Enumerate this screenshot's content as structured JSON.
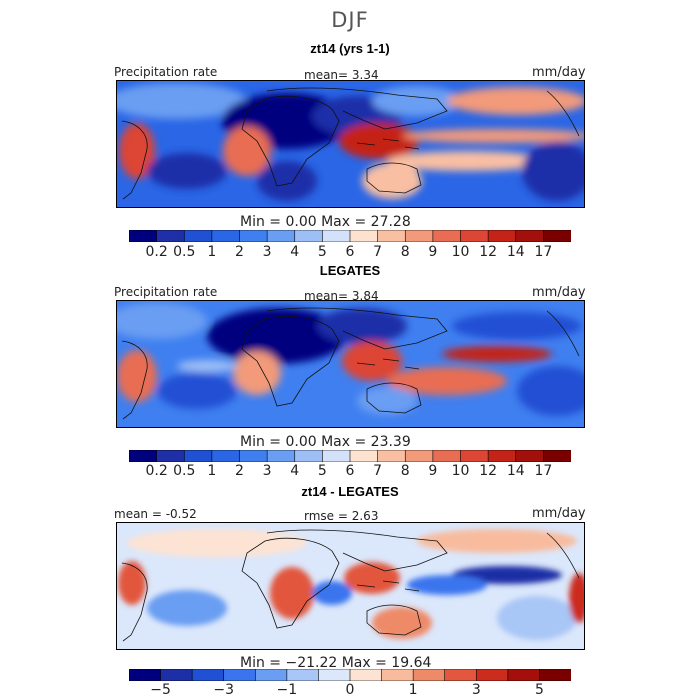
{
  "season": "DJF",
  "colors": {
    "precip_palette": [
      "#00007f",
      "#1f2fa8",
      "#2050d4",
      "#2a66e6",
      "#3f7ff0",
      "#6a9ef2",
      "#9ebff5",
      "#d3e2fa",
      "#fde2d0",
      "#f9bfa3",
      "#f29a7a",
      "#e86d52",
      "#dd4535",
      "#c52318",
      "#a30f0b",
      "#7a0000"
    ],
    "diff_palette": [
      "#00007f",
      "#1c2fa6",
      "#2050d4",
      "#3b74ee",
      "#6a9ef2",
      "#a8c6f6",
      "#dbe7fb",
      "#fde3d3",
      "#f8bb9d",
      "#ee8a68",
      "#e2573d",
      "#cc2c1c",
      "#a40f0b",
      "#7a0000"
    ]
  },
  "panels": [
    {
      "title": "zt14 (yrs 1-1)",
      "left_label": "Precipitation rate",
      "center_label": "mean=   3.34",
      "units": "mm/day",
      "minmax": "Min =    0.00  Max =   27.28",
      "colorbar_ticks": [
        "0.2",
        "0.5",
        "1",
        "2",
        "3",
        "4",
        "5",
        "6",
        "7",
        "8",
        "9",
        "10",
        "12",
        "14",
        "17"
      ]
    },
    {
      "title": "LEGATES",
      "left_label": "Precipitation rate",
      "center_label": "mean=   3.84",
      "units": "mm/day",
      "minmax": "Min =    0.00  Max =   23.39",
      "colorbar_ticks": [
        "0.2",
        "0.5",
        "1",
        "2",
        "3",
        "4",
        "5",
        "6",
        "7",
        "8",
        "9",
        "10",
        "12",
        "14",
        "17"
      ]
    },
    {
      "title": "zt14 - LEGATES",
      "left_label": "mean =   -0.52",
      "center_label": "rmse =    2.63",
      "units": "mm/day",
      "minmax": "Min = −21.22  Max =   19.64",
      "colorbar_ticks": [
        "−5",
        "−3",
        "−1",
        "0",
        "1",
        "3",
        "5"
      ]
    }
  ],
  "chart_data": [
    {
      "type": "heatmap",
      "title": "zt14 (yrs 1-1)",
      "variable": "Precipitation rate",
      "units": "mm/day",
      "mean": 3.34,
      "min": 0.0,
      "max": 27.28,
      "colorbar_levels": [
        0.2,
        0.5,
        1,
        2,
        3,
        4,
        5,
        6,
        7,
        8,
        9,
        10,
        12,
        14,
        17
      ],
      "zones": [
        {
          "lon": 20,
          "lat": -10,
          "value": 10
        },
        {
          "lon": 120,
          "lat": -5,
          "value": 12
        },
        {
          "lon": 150,
          "lat": 3,
          "value": 8
        },
        {
          "lon": -60,
          "lat": -10,
          "value": 8
        },
        {
          "lon": 20,
          "lat": 25,
          "value": 0.2
        },
        {
          "lon": 60,
          "lat": 20,
          "value": 0.5
        },
        {
          "lon": -120,
          "lat": 40,
          "value": 3
        }
      ]
    },
    {
      "type": "heatmap",
      "title": "LEGATES",
      "variable": "Precipitation rate",
      "units": "mm/day",
      "mean": 3.84,
      "min": 0.0,
      "max": 23.39,
      "colorbar_levels": [
        0.2,
        0.5,
        1,
        2,
        3,
        4,
        5,
        6,
        7,
        8,
        9,
        10,
        12,
        14,
        17
      ],
      "zones": [
        {
          "lon": 25,
          "lat": -12,
          "value": 9
        },
        {
          "lon": 120,
          "lat": -5,
          "value": 12
        },
        {
          "lon": 170,
          "lat": 5,
          "value": 14
        },
        {
          "lon": -55,
          "lat": -10,
          "value": 9
        },
        {
          "lon": 20,
          "lat": 25,
          "value": 0.2
        },
        {
          "lon": 80,
          "lat": 40,
          "value": 0.5
        }
      ]
    },
    {
      "type": "heatmap",
      "title": "zt14 - LEGATES",
      "units": "mm/day",
      "mean": -0.52,
      "rmse": 2.63,
      "min": -21.22,
      "max": 19.64,
      "colorbar_levels": [
        -5,
        -3,
        -1,
        0,
        1,
        3,
        5
      ],
      "zones": [
        {
          "lon": 170,
          "lat": 5,
          "value": -5
        },
        {
          "lon": 30,
          "lat": -5,
          "value": 5
        },
        {
          "lon": 120,
          "lat": -5,
          "value": 3
        },
        {
          "lon": -70,
          "lat": 0,
          "value": 3
        },
        {
          "lon": 150,
          "lat": -20,
          "value": 2
        }
      ]
    }
  ]
}
